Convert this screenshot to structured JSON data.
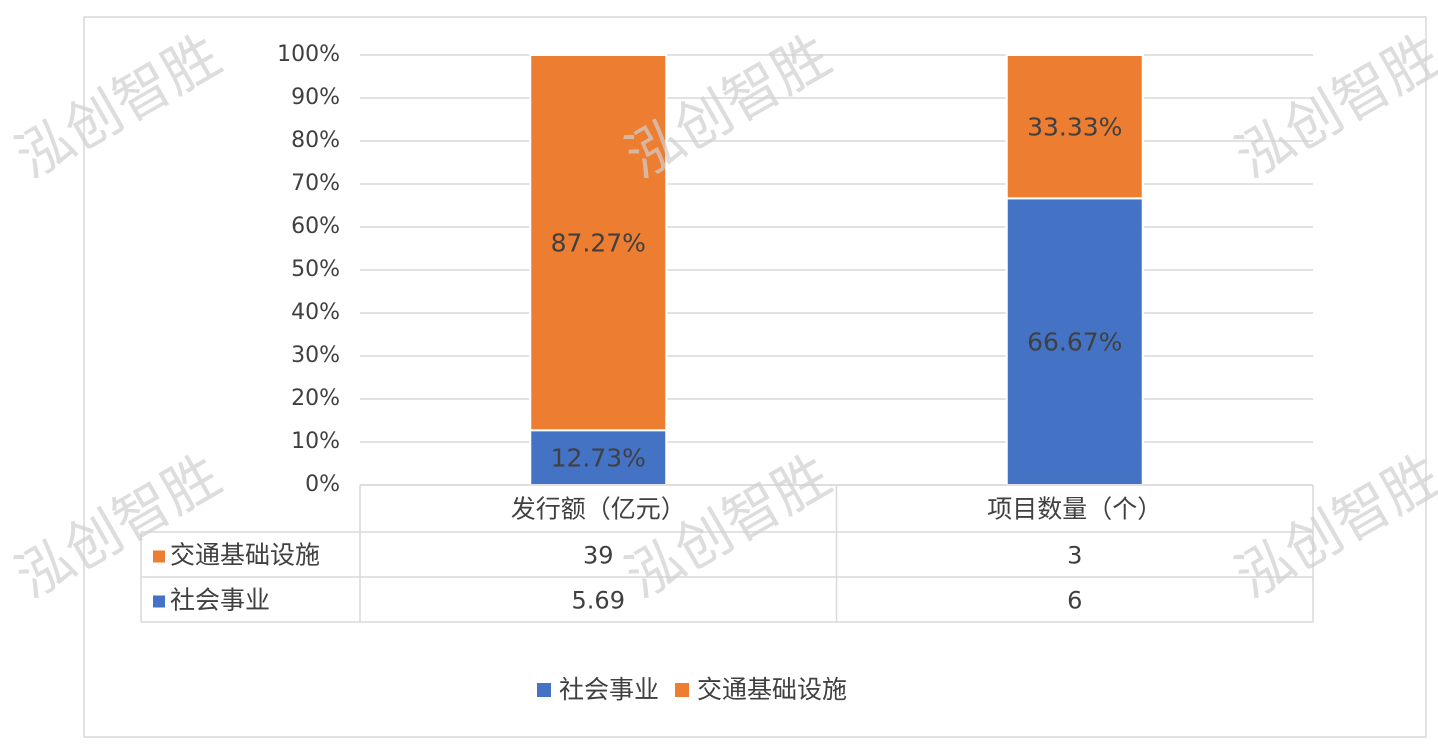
{
  "chart_data": {
    "type": "stacked_bar_100",
    "watermark": "泓创智胜",
    "categories": [
      "发行额（亿元）",
      "项目数量（个）"
    ],
    "series": [
      {
        "name": "社会事业",
        "color": "#4472c4",
        "values": [
          12.73,
          66.67
        ],
        "value_labels": [
          "12.73%",
          "66.67%"
        ],
        "table_values": [
          5.69,
          6
        ]
      },
      {
        "name": "交通基础设施",
        "color": "#ed7d31",
        "values": [
          87.27,
          33.33
        ],
        "value_labels": [
          "87.27%",
          "33.33%"
        ],
        "table_values": [
          39,
          3
        ]
      }
    ],
    "ylim": [
      0,
      100
    ],
    "yticks": [
      {
        "value": 0,
        "label": "0%"
      },
      {
        "value": 10,
        "label": "10%"
      },
      {
        "value": 20,
        "label": "20%"
      },
      {
        "value": 30,
        "label": "30%"
      },
      {
        "value": 40,
        "label": "40%"
      },
      {
        "value": 50,
        "label": "50%"
      },
      {
        "value": 60,
        "label": "60%"
      },
      {
        "value": 70,
        "label": "70%"
      },
      {
        "value": 80,
        "label": "80%"
      },
      {
        "value": 90,
        "label": "90%"
      },
      {
        "value": 100,
        "label": "100%"
      }
    ],
    "grid": true,
    "legend": "bottom"
  }
}
